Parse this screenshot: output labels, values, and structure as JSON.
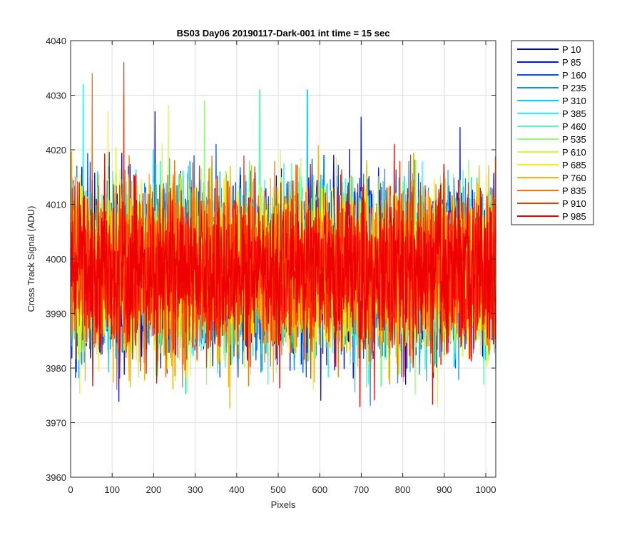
{
  "chart_data": {
    "type": "line",
    "title": "BS03 Day06 20190117-Dark-001 int time = 15 sec",
    "xlabel": "Pixels",
    "ylabel": "Cross Track Signal (ADU)",
    "xlim": [
      0,
      1024
    ],
    "ylim": [
      3960,
      4040
    ],
    "xticks": [
      0,
      100,
      200,
      300,
      400,
      500,
      600,
      700,
      800,
      900,
      1000
    ],
    "yticks": [
      3960,
      3970,
      3980,
      3990,
      4000,
      4010,
      4020,
      4030,
      4040
    ],
    "grid": true,
    "legend_position": "outside-top-right",
    "noise_model": {
      "mean": 3998,
      "std": 7.5,
      "points_per_series": 1024
    },
    "series": [
      {
        "name": "P 10",
        "color": "#0000bf",
        "peak": {
          "x": 203,
          "y": 4027
        }
      },
      {
        "name": "P 85",
        "color": "#0010ff",
        "peak": {
          "x": 700,
          "y": 4026
        }
      },
      {
        "name": "P 160",
        "color": "#0050ff",
        "peak": {
          "x": 350,
          "y": 4021
        }
      },
      {
        "name": "P 235",
        "color": "#0090ff",
        "peak": {
          "x": 610,
          "y": 4019
        }
      },
      {
        "name": "P 310",
        "color": "#00d0ff",
        "peak": {
          "x": 570,
          "y": 4031
        }
      },
      {
        "name": "P 385",
        "color": "#10ffef",
        "peak": {
          "x": 30,
          "y": 4032
        }
      },
      {
        "name": "P 460",
        "color": "#50ffaf",
        "peak": {
          "x": 455,
          "y": 4031
        }
      },
      {
        "name": "P 535",
        "color": "#90ff6f",
        "peak": {
          "x": 322,
          "y": 4029
        }
      },
      {
        "name": "P 610",
        "color": "#cfff30",
        "peak": {
          "x": 235,
          "y": 4028
        }
      },
      {
        "name": "P 685",
        "color": "#ffef00",
        "peak": {
          "x": 90,
          "y": 4027
        }
      },
      {
        "name": "P 760",
        "color": "#ffaf00",
        "peak": {
          "x": 128,
          "y": 4030
        }
      },
      {
        "name": "P 835",
        "color": "#ff7000",
        "peak": {
          "x": 52,
          "y": 4034
        }
      },
      {
        "name": "P 910",
        "color": "#ff3000",
        "peak": {
          "x": 128,
          "y": 4036
        }
      },
      {
        "name": "P 985",
        "color": "#ef0000",
        "peak": {
          "x": 780,
          "y": 4021
        }
      }
    ]
  }
}
